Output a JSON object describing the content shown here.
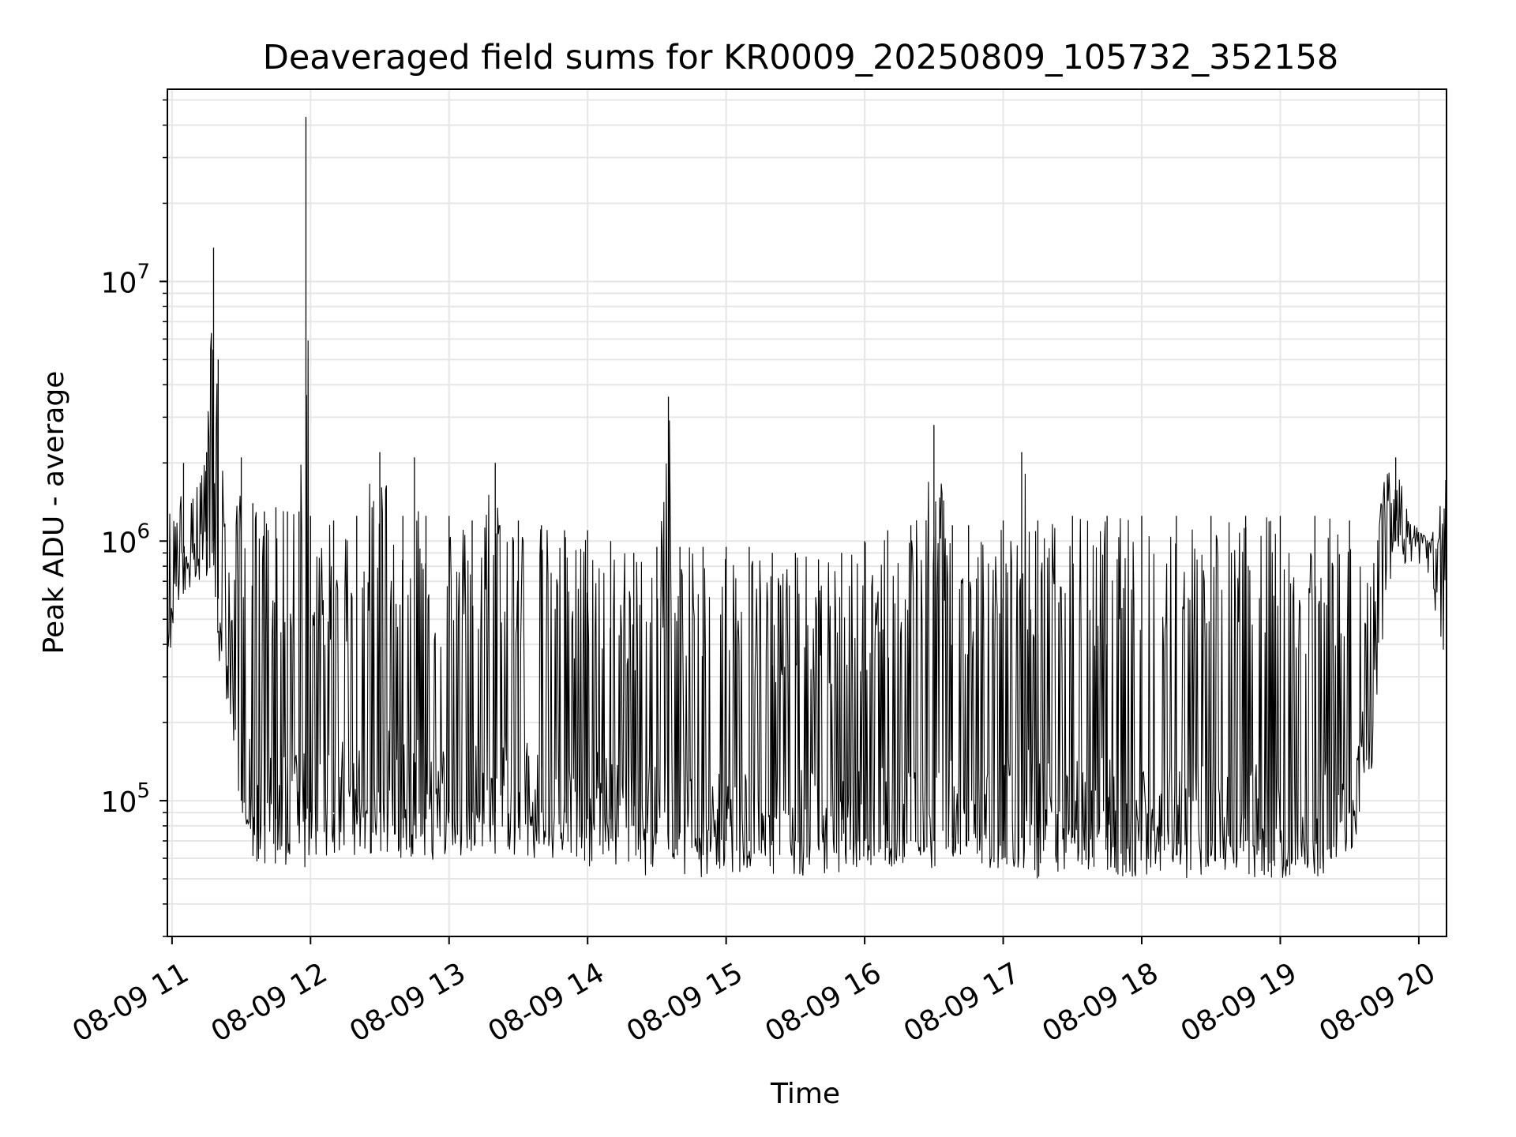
{
  "chart_data": {
    "type": "line",
    "title": "Deaveraged field sums for KR0009_20250809_105732_352158",
    "xlabel": "Time",
    "ylabel": "Peak ADU - average",
    "yscale": "log",
    "ylim": [
      30000,
      55000000
    ],
    "xlim": [
      "2025-08-09 10:58",
      "2025-08-09 20:12"
    ],
    "grid": true,
    "legend": "none",
    "line_color": "#000000",
    "x_tick_labels": [
      {
        "time": "2025-08-09 11:00",
        "label": "08-09 11"
      },
      {
        "time": "2025-08-09 12:00",
        "label": "08-09 12"
      },
      {
        "time": "2025-08-09 13:00",
        "label": "08-09 13"
      },
      {
        "time": "2025-08-09 14:00",
        "label": "08-09 14"
      },
      {
        "time": "2025-08-09 15:00",
        "label": "08-09 15"
      },
      {
        "time": "2025-08-09 16:00",
        "label": "08-09 16"
      },
      {
        "time": "2025-08-09 17:00",
        "label": "08-09 17"
      },
      {
        "time": "2025-08-09 18:00",
        "label": "08-09 18"
      },
      {
        "time": "2025-08-09 19:00",
        "label": "08-09 19"
      },
      {
        "time": "2025-08-09 20:00",
        "label": "08-09 20"
      }
    ],
    "y_tick_labels": [
      {
        "value": 100000,
        "base": "10",
        "exp": "5"
      },
      {
        "value": 1000000,
        "base": "10",
        "exp": "6"
      },
      {
        "value": 10000000,
        "base": "10",
        "exp": "7"
      }
    ],
    "series": [
      {
        "x": [
          "2025-08-09 10:58",
          "2025-08-09 11:00",
          "2025-08-09 11:05",
          "2025-08-09 11:10",
          "2025-08-09 11:15",
          "2025-08-09 11:18",
          "2025-08-09 11:20",
          "2025-08-09 11:25",
          "2025-08-09 11:30",
          "2025-08-09 11:35",
          "2025-08-09 11:40",
          "2025-08-09 11:45",
          "2025-08-09 11:50",
          "2025-08-09 11:55",
          "2025-08-09 11:58",
          "2025-08-09 12:00",
          "2025-08-09 12:10",
          "2025-08-09 12:20",
          "2025-08-09 12:30",
          "2025-08-09 12:40",
          "2025-08-09 12:45",
          "2025-08-09 12:50",
          "2025-08-09 13:00",
          "2025-08-09 13:10",
          "2025-08-09 13:20",
          "2025-08-09 13:30",
          "2025-08-09 13:40",
          "2025-08-09 13:50",
          "2025-08-09 14:00",
          "2025-08-09 14:10",
          "2025-08-09 14:20",
          "2025-08-09 14:30",
          "2025-08-09 14:35",
          "2025-08-09 14:40",
          "2025-08-09 14:50",
          "2025-08-09 15:00",
          "2025-08-09 15:10",
          "2025-08-09 15:20",
          "2025-08-09 15:30",
          "2025-08-09 15:40",
          "2025-08-09 15:50",
          "2025-08-09 16:00",
          "2025-08-09 16:10",
          "2025-08-09 16:20",
          "2025-08-09 16:30",
          "2025-08-09 16:38",
          "2025-08-09 16:45",
          "2025-08-09 17:00",
          "2025-08-09 17:08",
          "2025-08-09 17:15",
          "2025-08-09 17:30",
          "2025-08-09 17:45",
          "2025-08-09 18:00",
          "2025-08-09 18:15",
          "2025-08-09 18:30",
          "2025-08-09 18:45",
          "2025-08-09 19:00",
          "2025-08-09 19:15",
          "2025-08-09 19:30",
          "2025-08-09 19:40",
          "2025-08-09 19:45",
          "2025-08-09 19:50",
          "2025-08-09 19:55",
          "2025-08-09 20:00",
          "2025-08-09 20:05",
          "2025-08-09 20:10",
          "2025-08-09 20:12"
        ],
        "upper": [
          1500000,
          1200000,
          2000000,
          1800000,
          2200000,
          13500000,
          5000000,
          700000,
          2100000,
          1400000,
          1300000,
          1350000,
          1300000,
          1300000,
          43000000,
          1250000,
          1200000,
          1250000,
          2200000,
          1250000,
          2100000,
          1250000,
          1250000,
          1200000,
          2000000,
          1200000,
          1150000,
          1100000,
          1100000,
          1000000,
          900000,
          950000,
          3600000,
          950000,
          950000,
          950000,
          950000,
          900000,
          900000,
          850000,
          900000,
          1000000,
          1100000,
          1150000,
          2800000,
          1150000,
          1150000,
          1200000,
          2200000,
          1200000,
          1250000,
          1250000,
          1250000,
          1250000,
          1250000,
          1250000,
          1250000,
          1250000,
          1200000,
          800000,
          1800000,
          2100000,
          1300000,
          1100000,
          1000000,
          1500000,
          1900000
        ],
        "lower": [
          400000,
          350000,
          600000,
          700000,
          700000,
          800000,
          350000,
          200000,
          90000,
          60000,
          55000,
          55000,
          55000,
          55000,
          55000,
          60000,
          60000,
          60000,
          60000,
          60000,
          60000,
          58000,
          60000,
          60000,
          60000,
          60000,
          58000,
          58000,
          55000,
          55000,
          52000,
          50000,
          50000,
          50000,
          50000,
          50000,
          50000,
          50000,
          50000,
          52000,
          52000,
          55000,
          55000,
          55000,
          55000,
          60000,
          55000,
          55000,
          55000,
          50000,
          52000,
          52000,
          50000,
          50000,
          50000,
          50000,
          50000,
          50000,
          60000,
          120000,
          500000,
          800000,
          800000,
          800000,
          700000,
          350000,
          400000
        ],
        "base": [
          600000,
          500000,
          900000,
          900000,
          1000000,
          1000000,
          600000,
          250000,
          100000,
          85000,
          80000,
          85000,
          85000,
          85000,
          85000,
          90000,
          90000,
          90000,
          90000,
          85000,
          85000,
          85000,
          90000,
          90000,
          90000,
          90000,
          90000,
          90000,
          85000,
          85000,
          80000,
          75000,
          75000,
          75000,
          75000,
          70000,
          70000,
          70000,
          70000,
          70000,
          70000,
          70000,
          70000,
          70000,
          70000,
          72000,
          70000,
          70000,
          72000,
          72000,
          72000,
          72000,
          70000,
          70000,
          70000,
          70000,
          70000,
          70000,
          90000,
          200000,
          700000,
          1000000,
          1000000,
          1000000,
          900000,
          400000,
          1000000
        ]
      }
    ]
  }
}
